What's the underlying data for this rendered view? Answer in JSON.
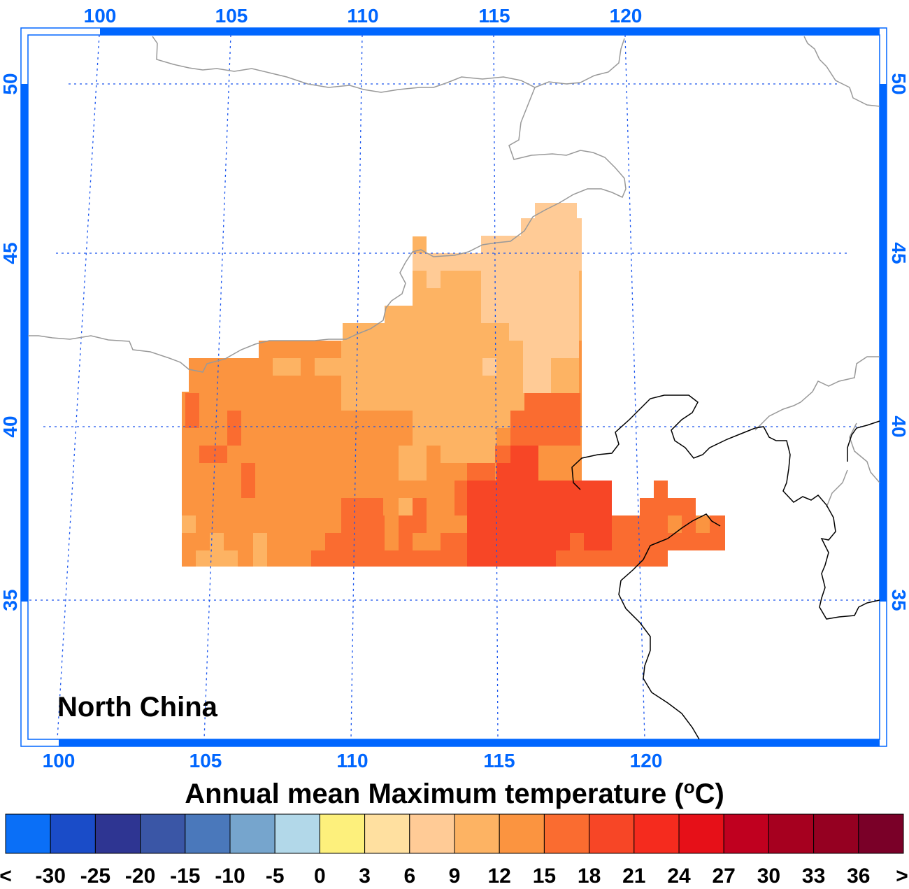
{
  "title": "Annual mean Maximum temperature (°C)",
  "title_main": "Annual mean Maximum temperature (",
  "title_unit_sup": "o",
  "title_unit_tail": "C)",
  "region_label": "North China",
  "colors": {
    "axis": "#0066ff",
    "grid": "#1a55ee",
    "province_border": "#999999",
    "coastline": "#000000"
  },
  "top_lon_labels": [
    "100",
    "105",
    "110",
    "115",
    "120"
  ],
  "bottom_lon_labels": [
    "100",
    "105",
    "110",
    "115",
    "120"
  ],
  "left_lat_labels": [
    "50",
    "45",
    "40",
    "35"
  ],
  "right_lat_labels": [
    "50",
    "45",
    "40",
    "35"
  ],
  "colorbar": {
    "colors": [
      "#0a6ff7",
      "#1a4cc8",
      "#2e3592",
      "#3a56a6",
      "#4a78bb",
      "#76a5cd",
      "#b2d8e9",
      "#fdf07c",
      "#ffe0a0",
      "#ffcb96",
      "#fdb363",
      "#fb9440",
      "#fa6c30",
      "#f74626",
      "#f52b1e",
      "#e61018",
      "#c0001f",
      "#a6001f",
      "#950021",
      "#7a0028"
    ],
    "labels": [
      "<",
      "-30",
      "-25",
      "-20",
      "-15",
      "-10",
      "-5",
      "0",
      "3",
      "6",
      "9",
      "12",
      "15",
      "18",
      "21",
      "24",
      "27",
      "30",
      "33",
      "36",
      ">"
    ]
  }
}
